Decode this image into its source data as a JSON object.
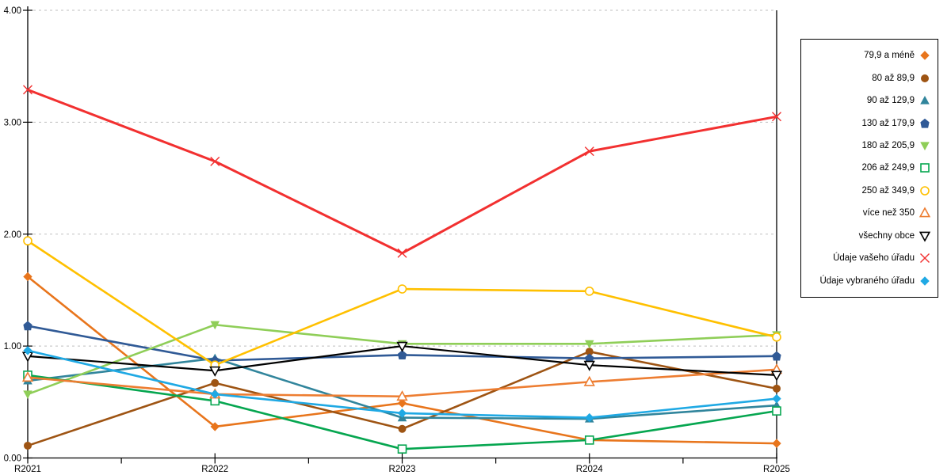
{
  "chart_data": {
    "type": "line",
    "title": "",
    "categories": [
      "R2021",
      "R2022",
      "R2023",
      "R2024",
      "R2025"
    ],
    "ylim": [
      0,
      4
    ],
    "yticks": [
      "0.00",
      "1.00",
      "2.00",
      "3.00",
      "4.00"
    ],
    "grid": "horizontal-dashed",
    "legend_position": "right",
    "series": [
      {
        "name": "79,9 a méně",
        "color": "#E8751C",
        "marker": "diamond",
        "fill": "filled",
        "values": [
          1.62,
          0.28,
          0.49,
          0.16,
          0.13
        ]
      },
      {
        "name": "80 až 89,9",
        "color": "#9E5413",
        "marker": "circle",
        "fill": "filled",
        "values": [
          0.11,
          0.67,
          0.26,
          0.95,
          0.62
        ]
      },
      {
        "name": "90 až 129,9",
        "color": "#31859C",
        "marker": "triangle-up",
        "fill": "filled",
        "values": [
          0.69,
          0.89,
          0.36,
          0.35,
          0.47
        ]
      },
      {
        "name": "130 až 179,9",
        "color": "#305A96",
        "marker": "pentagon",
        "fill": "filled",
        "values": [
          1.18,
          0.87,
          0.92,
          0.89,
          0.91
        ]
      },
      {
        "name": "180 až 205,9",
        "color": "#8FCE58",
        "marker": "triangle-down",
        "fill": "filled",
        "values": [
          0.57,
          1.19,
          1.02,
          1.02,
          1.1
        ]
      },
      {
        "name": "206 až 249,9",
        "color": "#06A650",
        "marker": "square",
        "fill": "open",
        "values": [
          0.74,
          0.51,
          0.08,
          0.16,
          0.42
        ]
      },
      {
        "name": "250 až 349,9",
        "color": "#FFC000",
        "marker": "circle",
        "fill": "open",
        "values": [
          1.94,
          0.83,
          1.51,
          1.49,
          1.08
        ]
      },
      {
        "name": "více než 350",
        "color": "#ED7D31",
        "marker": "triangle-up",
        "fill": "open",
        "values": [
          0.72,
          0.57,
          0.55,
          0.68,
          0.79
        ]
      },
      {
        "name": "všechny obce",
        "color": "#000000",
        "marker": "triangle-down",
        "fill": "open",
        "values": [
          0.91,
          0.78,
          1.0,
          0.83,
          0.74
        ]
      },
      {
        "name": "Údaje vašeho úřadu",
        "color": "#F23030",
        "marker": "x",
        "fill": "line",
        "values": [
          3.29,
          2.65,
          1.83,
          2.74,
          3.05
        ]
      },
      {
        "name": "Údaje vybraného úřadu",
        "color": "#1FA9E4",
        "marker": "diamond",
        "fill": "filled",
        "values": [
          0.96,
          0.57,
          0.4,
          0.36,
          0.53
        ]
      }
    ]
  },
  "colors": {
    "background": "#FFFFFF",
    "gridline": "#BFBFBF",
    "axis": "#000000",
    "legend_border": "#000000",
    "tick_label": "#000000"
  }
}
